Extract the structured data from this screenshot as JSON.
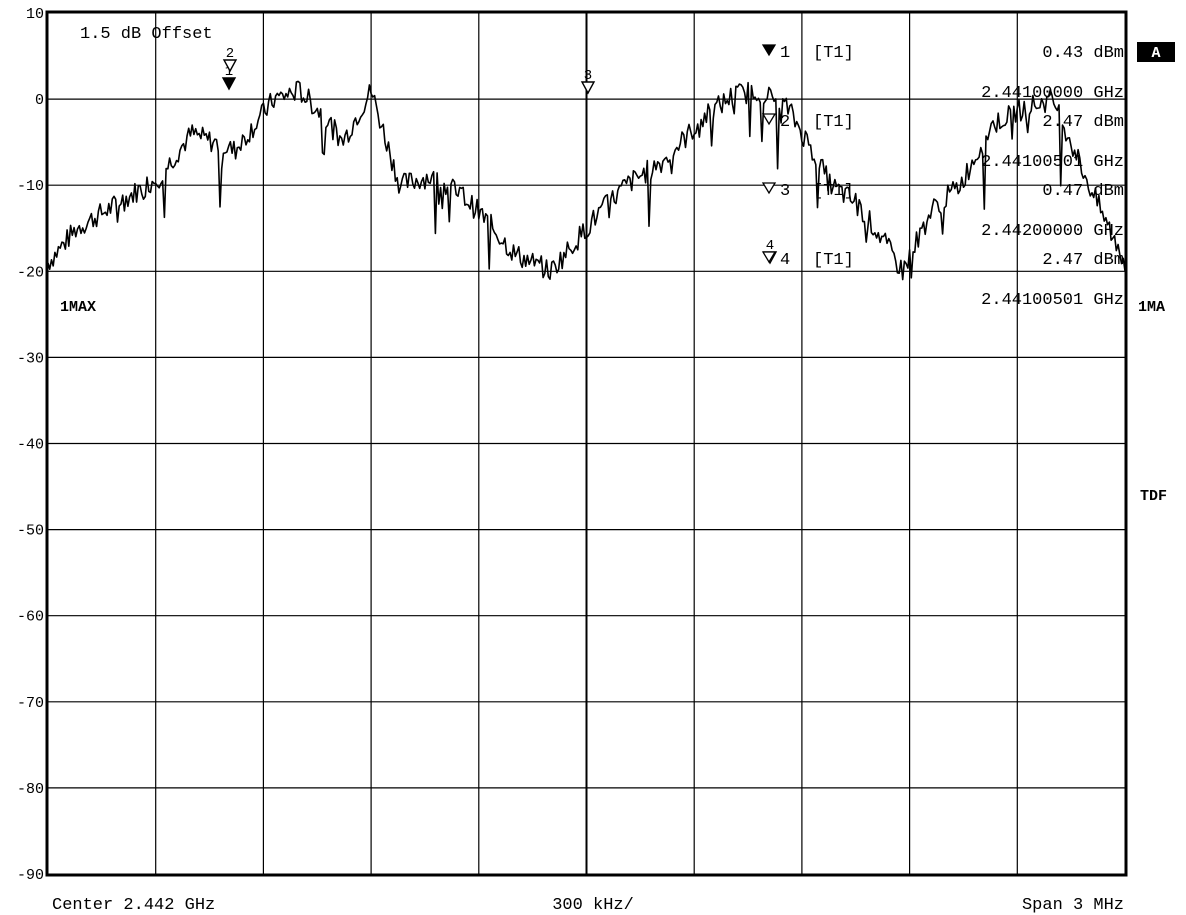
{
  "chart_data": {
    "type": "line",
    "title": "",
    "xlabel": "",
    "ylabel": "",
    "x_unit": "GHz",
    "xlim": [
      2.4405,
      2.4435
    ],
    "ylim": [
      -90,
      10
    ],
    "grid": true,
    "y_ticks": [
      "10",
      "0",
      "-10",
      "-20",
      "-30",
      "-40",
      "-50",
      "-60",
      "-70",
      "-80",
      "-90"
    ],
    "offset_label": "1.5 dB Offset",
    "trace_label": "1MAX",
    "footer": {
      "left": "Center 2.442 GHz",
      "center": "300 kHz/",
      "right": "Span 3 MHz"
    },
    "side_labels": {
      "box": "A",
      "trace": "1MA",
      "tdf": "TDF"
    },
    "series": [
      {
        "x": [
          2.4405,
          2.44058,
          2.4407,
          2.44081,
          2.4409,
          2.44102,
          2.44113,
          2.4412,
          2.44127,
          2.44132,
          2.4414,
          2.44148,
          2.44156,
          2.44165,
          2.44172,
          2.4418,
          2.4419,
          2.44198,
          2.44204,
          2.44211,
          2.44222,
          2.44233,
          2.44241,
          2.44248,
          2.44256,
          2.44263,
          2.44268,
          2.44275,
          2.44282,
          2.44288,
          2.44296,
          2.44304,
          2.44313,
          2.44322,
          2.4433,
          2.4434,
          2.4435
        ],
        "values": [
          -19,
          -15,
          -12,
          -9,
          -4,
          -6,
          0,
          1,
          -2,
          -5,
          1,
          -10,
          -9,
          -11,
          -14,
          -18,
          -20,
          -16,
          -13,
          -10,
          -7,
          -2,
          0.5,
          1,
          -1,
          -6,
          -10,
          -12,
          -16,
          -20,
          -13,
          -10,
          -3,
          -1,
          0,
          -10,
          -19
        ]
      }
    ],
    "markers": [
      {
        "id": "1",
        "label": "1",
        "x": 2.441,
        "y": 0.43,
        "filled": true
      },
      {
        "id": "2",
        "label": "2",
        "x": 2.441005,
        "y": 2.47,
        "filled": false
      },
      {
        "id": "3",
        "label": "3",
        "x": 2.442,
        "y": 0.47,
        "filled": false
      },
      {
        "id": "4",
        "label": "4",
        "x": 2.441005,
        "y": 2.47,
        "filled": false
      }
    ],
    "marker_table": [
      {
        "num": "1",
        "trace": "[T1]",
        "level": "0.43 dBm",
        "freq": "2.44100000 GHz",
        "filled": true
      },
      {
        "num": "2",
        "trace": "[T1]",
        "level": "2.47 dBm",
        "freq": "2.44100501 GHz",
        "filled": false
      },
      {
        "num": "3",
        "trace": "[T1]",
        "level": "0.47 dBm",
        "freq": "2.44200000 GHz",
        "filled": false
      },
      {
        "num": "4",
        "trace": "[T1]",
        "level": "2.47 dBm",
        "freq": "2.44100501 GHz",
        "filled": false
      }
    ]
  }
}
